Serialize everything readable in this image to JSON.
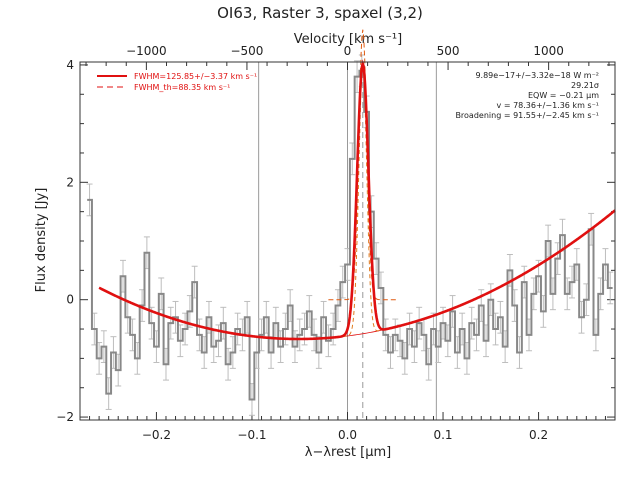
{
  "chart_data": {
    "type": "line",
    "title": "OI63, Raster 3, spaxel (3,2)",
    "xlabel": "λ−λrest [μm]",
    "ylabel": "Flux density [Jy]",
    "top_axis_label": "Velocity [km s⁻¹]",
    "xlim": [
      -0.28,
      0.28
    ],
    "ylim": [
      -2.05,
      4.05
    ],
    "top_xlim": [
      -1330,
      1330
    ],
    "x_ticks": [
      -0.2,
      -0.1,
      0.0,
      0.1,
      0.2
    ],
    "x_tick_labels": [
      "−0.2",
      "−0.1",
      "0.0",
      "0.1",
      "0.2"
    ],
    "y_ticks": [
      -2,
      0,
      2,
      4
    ],
    "y_tick_labels": [
      "−2",
      "0",
      "2",
      "4"
    ],
    "top_ticks": [
      -1000,
      -500,
      0,
      500,
      1000
    ],
    "top_tick_labels": [
      "−1000",
      "−500",
      "0",
      "500",
      "1000"
    ],
    "vertical_lines": [
      -0.093,
      0.0,
      0.093
    ],
    "dashed_center": 0.016,
    "legend": [
      {
        "label": "FWHM=125.85+/−3.37 km s⁻¹",
        "color": "#e01010",
        "style": "solid"
      },
      {
        "label": "FWHM_th=88.35 km s⁻¹",
        "color": "#e01010",
        "style": "dashed"
      }
    ],
    "annotations": [
      "9.89e−17+/−3.32e−18 W m⁻²",
      "29.21σ",
      "EQW = −0.21 μm",
      "v = 78.36+/−1.36 km s⁻¹",
      "Broadening = 91.55+/−2.45 km s⁻¹"
    ],
    "series": [
      {
        "style": "step",
        "color": "#888888",
        "x": [
          -0.27,
          -0.265,
          -0.26,
          -0.255,
          -0.25,
          -0.245,
          -0.24,
          -0.235,
          -0.23,
          -0.225,
          -0.22,
          -0.215,
          -0.21,
          -0.205,
          -0.2,
          -0.195,
          -0.19,
          -0.185,
          -0.18,
          -0.175,
          -0.17,
          -0.165,
          -0.16,
          -0.155,
          -0.15,
          -0.145,
          -0.14,
          -0.135,
          -0.13,
          -0.125,
          -0.12,
          -0.115,
          -0.11,
          -0.105,
          -0.1,
          -0.095,
          -0.09,
          -0.085,
          -0.08,
          -0.075,
          -0.07,
          -0.065,
          -0.06,
          -0.055,
          -0.05,
          -0.045,
          -0.04,
          -0.035,
          -0.03,
          -0.025,
          -0.02,
          -0.015,
          -0.01,
          -0.005,
          0.0,
          0.005,
          0.01,
          0.015,
          0.02,
          0.025,
          0.03,
          0.035,
          0.04,
          0.045,
          0.05,
          0.055,
          0.06,
          0.065,
          0.07,
          0.075,
          0.08,
          0.085,
          0.09,
          0.095,
          0.1,
          0.105,
          0.11,
          0.115,
          0.12,
          0.125,
          0.13,
          0.135,
          0.14,
          0.145,
          0.15,
          0.155,
          0.16,
          0.165,
          0.17,
          0.175,
          0.18,
          0.185,
          0.19,
          0.195,
          0.2,
          0.205,
          0.21,
          0.215,
          0.22,
          0.225,
          0.23,
          0.235,
          0.24,
          0.245,
          0.25,
          0.255,
          0.26,
          0.265,
          0.27,
          0.275
        ],
        "y": [
          1.7,
          -0.5,
          -1.0,
          -0.8,
          -1.6,
          -0.9,
          -1.2,
          0.4,
          -0.3,
          -0.6,
          -1.0,
          -0.1,
          0.8,
          -0.4,
          -0.8,
          0.1,
          -1.1,
          -0.4,
          -0.3,
          -0.7,
          -0.5,
          -0.2,
          0.3,
          -0.6,
          -0.9,
          -0.3,
          -0.8,
          -0.7,
          -0.4,
          -1.1,
          -0.9,
          -0.5,
          -0.6,
          -0.3,
          -1.7,
          -0.9,
          -0.6,
          -0.3,
          -0.9,
          -0.4,
          -0.8,
          -0.5,
          -0.1,
          -0.8,
          -0.6,
          -0.5,
          -0.2,
          -0.6,
          -0.9,
          -0.3,
          -0.7,
          -0.5,
          -0.1,
          0.3,
          0.6,
          2.4,
          3.8,
          3.9,
          3.2,
          1.5,
          0.7,
          0.2,
          -0.6,
          -0.9,
          -0.6,
          -0.7,
          -1.0,
          -0.5,
          -0.8,
          -0.4,
          -0.6,
          -1.1,
          -0.5,
          -0.8,
          -0.4,
          -0.7,
          -0.2,
          -0.9,
          -0.5,
          -1.0,
          -0.4,
          -0.6,
          -0.1,
          -0.7,
          0.0,
          -0.5,
          -0.3,
          -0.8,
          0.5,
          -0.1,
          -0.9,
          0.3,
          -0.6,
          0.1,
          0.4,
          -0.2,
          1.0,
          0.1,
          0.7,
          1.1,
          0.1,
          0.3,
          0.6,
          -0.3,
          0.0,
          1.2,
          -0.6,
          0.1,
          0.6,
          0.2
        ]
      },
      {
        "name": "FWHM=125.85+/−3.37 km s⁻¹",
        "style": "fit",
        "color": "#e01010",
        "baseline": {
          "x0": -0.051,
          "b": -0.67,
          "a": 20
        },
        "gaussian": {
          "amp": 4.6,
          "center": 0.016,
          "fwhm": 0.0139
        }
      },
      {
        "name": "FWHM_th=88.35 km s⁻¹",
        "style": "dashed",
        "color": "#e01010",
        "gaussian": {
          "amp": 4.6,
          "center": 0.016,
          "fwhm": 0.0098
        }
      }
    ]
  }
}
